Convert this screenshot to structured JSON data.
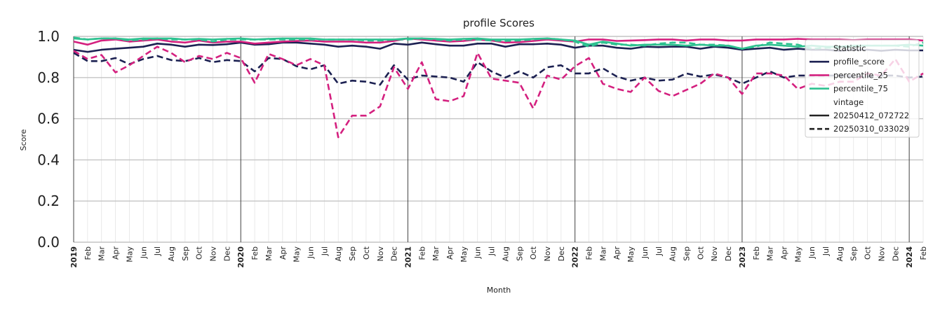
{
  "chart_data": {
    "type": "line",
    "title": "profile Scores",
    "xlabel": "Month",
    "ylabel": "Score",
    "ylim": [
      0.0,
      1.0
    ],
    "yticks": [
      "0.0",
      "0.2",
      "0.4",
      "0.6",
      "0.8",
      "1.0"
    ],
    "ytick_values": [
      0.0,
      0.2,
      0.4,
      0.6,
      0.8,
      1.0
    ],
    "grid": true,
    "legend_position": "right",
    "x_labels": [
      "2019",
      "Feb",
      "Mar",
      "Apr",
      "May",
      "Jun",
      "Jul",
      "Aug",
      "Sep",
      "Oct",
      "Nov",
      "Dec",
      "2020",
      "Feb",
      "Mar",
      "Apr",
      "May",
      "Jun",
      "Jul",
      "Aug",
      "Sep",
      "Oct",
      "Nov",
      "Dec",
      "2021",
      "Feb",
      "Mar",
      "Apr",
      "May",
      "Jun",
      "Jul",
      "Aug",
      "Sep",
      "Oct",
      "Nov",
      "Dec",
      "2022",
      "Feb",
      "Mar",
      "Apr",
      "May",
      "Jun",
      "Jul",
      "Aug",
      "Sep",
      "Oct",
      "Nov",
      "Dec",
      "2023",
      "Feb",
      "Mar",
      "Apr",
      "May",
      "Jun",
      "Jul",
      "Aug",
      "Sep",
      "Oct",
      "Nov",
      "Dec",
      "2024",
      "Feb"
    ],
    "legend": {
      "title_statistic": "Statistic",
      "title_vintage": "vintage",
      "statistic_entries": [
        {
          "label": "profile_score",
          "color": "#1c2152"
        },
        {
          "label": "percentile_25",
          "color": "#d4207f"
        },
        {
          "label": "percentile_75",
          "color": "#2ec190"
        }
      ],
      "vintage_entries": [
        {
          "label": "20250412_072722",
          "style": "solid"
        },
        {
          "label": "20250310_033029",
          "style": "dashed"
        }
      ]
    },
    "series": [
      {
        "name": "profile_score",
        "vintage": "20250412_072722",
        "color": "#1c2152",
        "dash": false,
        "values": [
          0.935,
          0.925,
          0.935,
          0.94,
          0.945,
          0.95,
          0.965,
          0.96,
          0.95,
          0.96,
          0.958,
          0.962,
          0.97,
          0.96,
          0.962,
          0.97,
          0.97,
          0.965,
          0.96,
          0.95,
          0.955,
          0.95,
          0.94,
          0.965,
          0.96,
          0.97,
          0.962,
          0.955,
          0.955,
          0.965,
          0.965,
          0.95,
          0.962,
          0.962,
          0.965,
          0.96,
          0.945,
          0.955,
          0.955,
          0.945,
          0.94,
          0.95,
          0.948,
          0.95,
          0.95,
          0.94,
          0.95,
          0.945,
          0.935,
          0.94,
          0.945,
          0.935,
          0.94,
          0.935,
          0.935,
          0.93,
          0.935,
          0.935,
          0.93,
          0.935,
          0.932,
          0.932
        ]
      },
      {
        "name": "percentile_25",
        "vintage": "20250412_072722",
        "color": "#d4207f",
        "dash": false,
        "values": [
          0.975,
          0.96,
          0.98,
          0.985,
          0.975,
          0.98,
          0.985,
          0.975,
          0.97,
          0.98,
          0.97,
          0.975,
          0.975,
          0.965,
          0.97,
          0.975,
          0.978,
          0.98,
          0.975,
          0.975,
          0.975,
          0.97,
          0.97,
          0.978,
          0.99,
          0.985,
          0.98,
          0.975,
          0.978,
          0.985,
          0.98,
          0.97,
          0.972,
          0.978,
          0.985,
          0.98,
          0.975,
          0.985,
          0.985,
          0.978,
          0.98,
          0.982,
          0.985,
          0.985,
          0.98,
          0.985,
          0.985,
          0.98,
          0.98,
          0.985,
          0.985,
          0.985,
          0.988,
          0.985,
          0.985,
          0.985,
          0.982,
          0.985,
          0.985,
          0.985,
          0.985,
          0.98
        ]
      },
      {
        "name": "percentile_75",
        "vintage": "20250412_072722",
        "color": "#2ec190",
        "dash": false,
        "values": [
          0.99,
          0.985,
          0.99,
          0.99,
          0.985,
          0.99,
          0.99,
          0.99,
          0.985,
          0.988,
          0.985,
          0.988,
          0.99,
          0.985,
          0.988,
          0.99,
          0.99,
          0.99,
          0.985,
          0.985,
          0.985,
          0.985,
          0.985,
          0.985,
          0.99,
          0.99,
          0.988,
          0.985,
          0.988,
          0.99,
          0.985,
          0.985,
          0.985,
          0.988,
          0.99,
          0.985,
          0.98,
          0.96,
          0.975,
          0.965,
          0.955,
          0.96,
          0.96,
          0.96,
          0.955,
          0.96,
          0.955,
          0.955,
          0.94,
          0.955,
          0.96,
          0.955,
          0.95,
          0.955,
          0.95,
          0.95,
          0.955,
          0.955,
          0.955,
          0.955,
          0.96,
          0.955
        ]
      },
      {
        "name": "profile_score",
        "vintage": "20250310_033029",
        "color": "#1c2152",
        "dash": true,
        "values": [
          0.92,
          0.88,
          0.88,
          0.895,
          0.865,
          0.89,
          0.905,
          0.885,
          0.88,
          0.895,
          0.875,
          0.885,
          0.88,
          0.83,
          0.895,
          0.89,
          0.855,
          0.84,
          0.86,
          0.77,
          0.785,
          0.78,
          0.765,
          0.86,
          0.79,
          0.81,
          0.805,
          0.8,
          0.78,
          0.875,
          0.83,
          0.8,
          0.83,
          0.8,
          0.85,
          0.86,
          0.82,
          0.82,
          0.845,
          0.805,
          0.785,
          0.8,
          0.785,
          0.79,
          0.82,
          0.805,
          0.815,
          0.8,
          0.77,
          0.8,
          0.83,
          0.8,
          0.81,
          0.81,
          0.81,
          0.81,
          0.805,
          0.805,
          0.81,
          0.81,
          0.8,
          0.805
        ]
      },
      {
        "name": "percentile_25",
        "vintage": "20250310_033029",
        "color": "#d4207f",
        "dash": true,
        "values": [
          0.93,
          0.89,
          0.91,
          0.825,
          0.86,
          0.905,
          0.95,
          0.92,
          0.875,
          0.905,
          0.89,
          0.92,
          0.895,
          0.775,
          0.915,
          0.89,
          0.86,
          0.89,
          0.86,
          0.51,
          0.615,
          0.615,
          0.66,
          0.85,
          0.745,
          0.875,
          0.695,
          0.685,
          0.71,
          0.92,
          0.795,
          0.785,
          0.775,
          0.65,
          0.81,
          0.79,
          0.855,
          0.895,
          0.77,
          0.745,
          0.73,
          0.8,
          0.735,
          0.71,
          0.74,
          0.77,
          0.82,
          0.8,
          0.72,
          0.82,
          0.82,
          0.81,
          0.745,
          0.77,
          0.76,
          0.78,
          0.78,
          0.82,
          0.81,
          0.89,
          0.78,
          0.82
        ]
      },
      {
        "name": "percentile_75",
        "vintage": "20250310_033029",
        "color": "#2ec190",
        "dash": true,
        "values": [
          0.995,
          0.985,
          0.99,
          0.99,
          0.98,
          0.985,
          0.99,
          0.985,
          0.985,
          0.985,
          0.975,
          0.985,
          0.985,
          0.985,
          0.985,
          0.985,
          0.985,
          0.985,
          0.985,
          0.985,
          0.985,
          0.98,
          0.98,
          0.985,
          0.985,
          0.99,
          0.985,
          0.98,
          0.985,
          0.985,
          0.98,
          0.978,
          0.98,
          0.985,
          0.99,
          0.985,
          0.975,
          0.95,
          0.97,
          0.96,
          0.96,
          0.955,
          0.965,
          0.97,
          0.97,
          0.96,
          0.96,
          0.955,
          0.94,
          0.95,
          0.97,
          0.965,
          0.96,
          0.94,
          0.945,
          0.945,
          0.95,
          0.955,
          0.955,
          0.955,
          0.95,
          0.97
        ]
      }
    ]
  }
}
